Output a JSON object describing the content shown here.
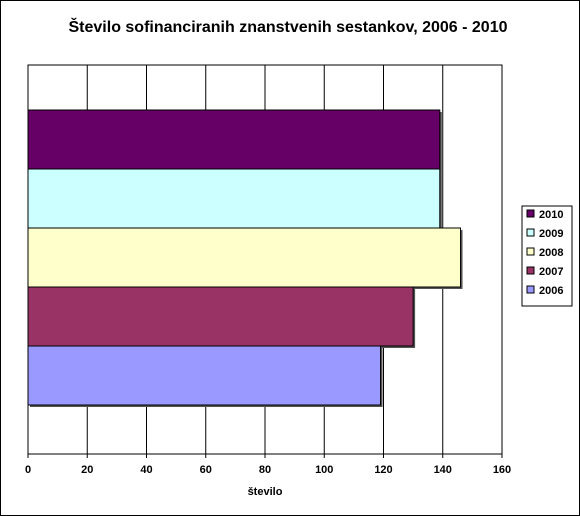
{
  "chart_data": {
    "type": "bar",
    "orientation": "horizontal",
    "title": "Število sofinanciranih znanstvenih sestankov, 2006 - 2010",
    "xlabel": "število",
    "ylabel": "",
    "xlim": [
      0,
      160
    ],
    "xticks": [
      "0",
      "20",
      "40",
      "60",
      "80",
      "100",
      "120",
      "140",
      "160"
    ],
    "grid": true,
    "legend_position": "right",
    "series": [
      {
        "name": "2010",
        "value": 139,
        "color": "#660066"
      },
      {
        "name": "2009",
        "value": 139,
        "color": "#CCFFFF"
      },
      {
        "name": "2008",
        "value": 146,
        "color": "#FFFFCC"
      },
      {
        "name": "2007",
        "value": 130,
        "color": "#993366"
      },
      {
        "name": "2006",
        "value": 119,
        "color": "#9999FF"
      }
    ]
  }
}
